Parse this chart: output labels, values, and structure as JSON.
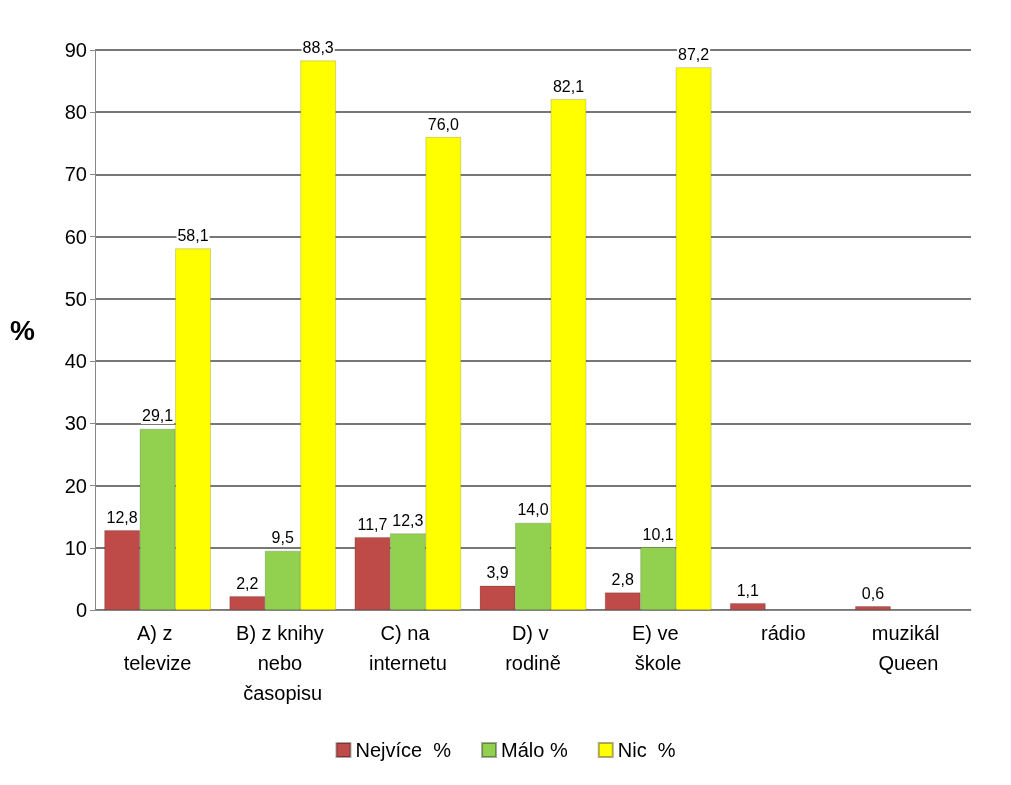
{
  "chart_data": {
    "type": "bar",
    "ylabel": "%",
    "categories": [
      "A) z televize",
      "B) z knihy nebo časopisu",
      "C) na internetu",
      "D) v rodině",
      "E) ve škole",
      "rádio",
      "muzikál Queen"
    ],
    "series": [
      {
        "name": "Nejvíce  %",
        "color": "#be4b48",
        "values": [
          12.8,
          2.2,
          11.7,
          3.9,
          2.8,
          1.1,
          0.6
        ],
        "value_labels": [
          "12,8",
          "2,2",
          "11,7",
          "3,9",
          "2,8",
          "1,1",
          "0,6"
        ]
      },
      {
        "name": "Málo %",
        "color": "#92d050",
        "values": [
          29.1,
          9.5,
          12.3,
          14.0,
          10.1,
          null,
          null
        ],
        "value_labels": [
          "29,1",
          "9,5",
          "12,3",
          "14,0",
          "10,1",
          null,
          null
        ]
      },
      {
        "name": "Nic  %",
        "color": "#ffff00",
        "values": [
          58.1,
          88.3,
          76.0,
          82.1,
          87.2,
          null,
          null
        ],
        "value_labels": [
          "58,1",
          "88,3",
          "76,0",
          "82,1",
          "87,2",
          null,
          null
        ]
      }
    ],
    "ylim": [
      0,
      90
    ],
    "yticks": [
      0,
      10,
      20,
      30,
      40,
      50,
      60,
      70,
      80,
      90
    ],
    "grid": "y",
    "legend": "bottom"
  }
}
